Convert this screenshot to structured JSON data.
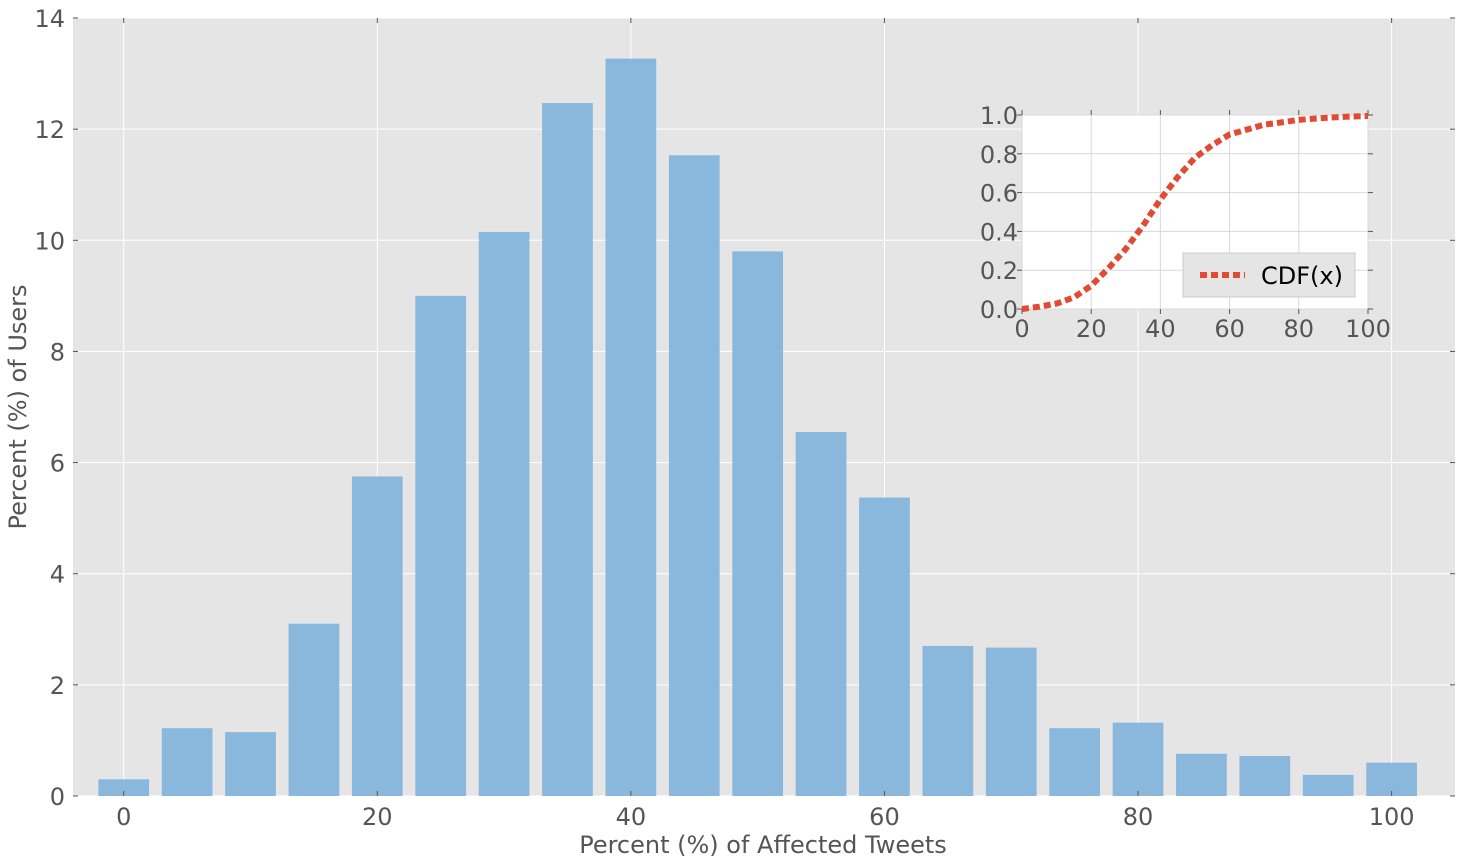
{
  "chart_data": [
    {
      "type": "bar",
      "xlabel": "Percent (%) of Affected Tweets",
      "ylabel": "Percent (%) of Users",
      "x": [
        0,
        5,
        10,
        15,
        20,
        25,
        30,
        35,
        40,
        45,
        50,
        55,
        60,
        65,
        70,
        75,
        80,
        85,
        90,
        95,
        100
      ],
      "values": [
        0.3,
        1.22,
        1.15,
        3.1,
        5.75,
        9.0,
        10.15,
        12.47,
        13.27,
        11.53,
        9.8,
        6.55,
        5.37,
        2.7,
        2.67,
        1.22,
        1.32,
        0.76,
        0.72,
        0.38,
        0.6
      ],
      "xlim": [
        -4,
        105
      ],
      "ylim": [
        0,
        14
      ],
      "xticks": [
        0,
        20,
        40,
        60,
        80,
        100
      ],
      "yticks": [
        0,
        2,
        4,
        6,
        8,
        10,
        12,
        14
      ],
      "grid": true,
      "color": "#7fb2da"
    },
    {
      "type": "line",
      "series": [
        {
          "name": "CDF(x)",
          "x": [
            0,
            5,
            10,
            15,
            20,
            25,
            30,
            35,
            40,
            45,
            50,
            55,
            60,
            65,
            70,
            75,
            80,
            85,
            90,
            95,
            100
          ],
          "y": [
            0.0,
            0.012,
            0.028,
            0.06,
            0.12,
            0.21,
            0.31,
            0.43,
            0.565,
            0.68,
            0.78,
            0.845,
            0.9,
            0.925,
            0.95,
            0.962,
            0.975,
            0.982,
            0.988,
            0.992,
            0.995
          ]
        }
      ],
      "xlim": [
        0,
        100
      ],
      "ylim": [
        0,
        1.0
      ],
      "xticks": [
        0,
        20,
        40,
        60,
        80,
        100
      ],
      "xtick_labels": [
        "0",
        "20",
        "40",
        "60",
        "80",
        "100"
      ],
      "yticks": [
        0,
        0.2,
        0.4,
        0.6,
        0.8,
        1.0
      ],
      "ytick_labels": [
        "0.0",
        "0.2",
        "0.4",
        "0.6",
        "0.8",
        "1.0"
      ],
      "grid": true,
      "legend_position": "lower-right",
      "color": "#e24a33"
    }
  ]
}
